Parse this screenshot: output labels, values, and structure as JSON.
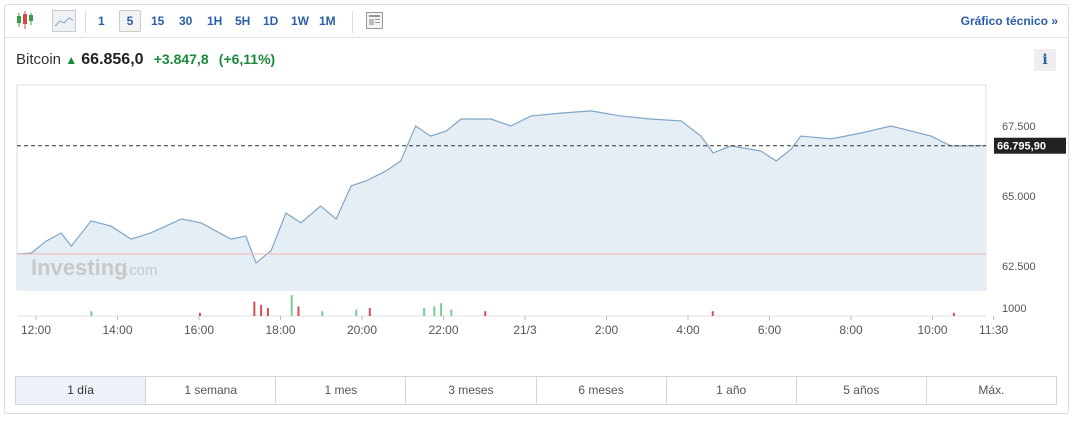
{
  "toolbar": {
    "intervals": [
      "1",
      "5",
      "15",
      "30",
      "1H",
      "5H",
      "1D",
      "1W",
      "1M"
    ],
    "selected_interval": "5",
    "technical_link": "Gráfico técnico »",
    "icons": [
      "candlestick-icon",
      "area-chart-icon",
      "news-layout-icon"
    ]
  },
  "quote": {
    "name": "Bitcoin",
    "price": "66.856,0",
    "change": "+3.847,8",
    "change_pct": "(+6,11%)",
    "direction": "up",
    "up_color": "#1a8a3a"
  },
  "info_label": "i",
  "watermark": {
    "brand": "Investing",
    "suffix": ".com"
  },
  "ranges": {
    "items": [
      "1 día",
      "1 semana",
      "1 mes",
      "3 meses",
      "6 meses",
      "1 año",
      "5 años",
      "Máx."
    ],
    "selected": "1 día"
  },
  "chart_data": {
    "type": "area",
    "current_price_label": "66.795,90",
    "current_price": 66795.9,
    "previous_close": 62930,
    "y_ticks": [
      {
        "v": 67500,
        "label": "67.500"
      },
      {
        "v": 65000,
        "label": "65.000"
      },
      {
        "v": 62500,
        "label": "62.500"
      }
    ],
    "volume_tick": "1000",
    "x_ticks": [
      {
        "t": "12:00",
        "label": "12:00"
      },
      {
        "t": "14:00",
        "label": "14:00"
      },
      {
        "t": "16:00",
        "label": "16:00"
      },
      {
        "t": "18:00",
        "label": "18:00"
      },
      {
        "t": "20:00",
        "label": "20:00"
      },
      {
        "t": "22:00",
        "label": "22:00"
      },
      {
        "t": "+00:00",
        "label": "21/3"
      },
      {
        "t": "+02:00",
        "label": "2:00"
      },
      {
        "t": "+04:00",
        "label": "4:00"
      },
      {
        "t": "+06:00",
        "label": "6:00"
      },
      {
        "t": "+08:00",
        "label": "8:00"
      },
      {
        "t": "+10:00",
        "label": "10:00"
      },
      {
        "t": "+11:30",
        "label": "11:30"
      }
    ],
    "series": [
      [
        "11:32",
        62930
      ],
      [
        "11:53",
        62960
      ],
      [
        "12:15",
        63390
      ],
      [
        "12:37",
        63680
      ],
      [
        "12:52",
        63210
      ],
      [
        "13:21",
        64110
      ],
      [
        "13:50",
        63930
      ],
      [
        "14:20",
        63460
      ],
      [
        "14:49",
        63680
      ],
      [
        "15:34",
        64180
      ],
      [
        "16:03",
        64040
      ],
      [
        "16:47",
        63460
      ],
      [
        "17:09",
        63570
      ],
      [
        "17:24",
        62610
      ],
      [
        "17:46",
        63040
      ],
      [
        "18:08",
        64390
      ],
      [
        "18:30",
        64040
      ],
      [
        "18:59",
        64640
      ],
      [
        "19:22",
        64180
      ],
      [
        "19:44",
        65360
      ],
      [
        "20:06",
        65540
      ],
      [
        "20:35",
        65890
      ],
      [
        "20:57",
        66250
      ],
      [
        "21:19",
        67500
      ],
      [
        "21:41",
        67140
      ],
      [
        "22:04",
        67320
      ],
      [
        "22:26",
        67750
      ],
      [
        "23:10",
        67750
      ],
      [
        "23:39",
        67500
      ],
      [
        "+00:09",
        67860
      ],
      [
        "+00:53",
        67960
      ],
      [
        "+01:37",
        68040
      ],
      [
        "+02:21",
        67860
      ],
      [
        "+03:05",
        67750
      ],
      [
        "+03:50",
        67680
      ],
      [
        "+04:19",
        67140
      ],
      [
        "+04:37",
        66540
      ],
      [
        "+05:03",
        66790
      ],
      [
        "+05:47",
        66610
      ],
      [
        "+06:10",
        66250
      ],
      [
        "+06:32",
        66680
      ],
      [
        "+06:46",
        67140
      ],
      [
        "+07:31",
        67040
      ],
      [
        "+08:15",
        67250
      ],
      [
        "+08:59",
        67500
      ],
      [
        "+09:58",
        67140
      ],
      [
        "+10:27",
        66790
      ],
      [
        "+11:19",
        66796
      ]
    ],
    "volume": [
      [
        "13:20",
        300,
        "up"
      ],
      [
        "16:00",
        200,
        "down"
      ],
      [
        "17:20",
        900,
        "down"
      ],
      [
        "17:30",
        700,
        "down"
      ],
      [
        "17:40",
        500,
        "down"
      ],
      [
        "18:15",
        1300,
        "up"
      ],
      [
        "18:25",
        600,
        "down"
      ],
      [
        "19:00",
        300,
        "up"
      ],
      [
        "19:50",
        400,
        "up"
      ],
      [
        "20:10",
        500,
        "down"
      ],
      [
        "21:30",
        500,
        "up"
      ],
      [
        "21:45",
        600,
        "up"
      ],
      [
        "21:55",
        800,
        "up"
      ],
      [
        "22:10",
        400,
        "up"
      ],
      [
        "23:00",
        300,
        "down"
      ],
      [
        "+04:35",
        300,
        "down"
      ],
      [
        "+10:30",
        200,
        "down"
      ]
    ],
    "line_color": "#7fa6c6",
    "fill_color": "#e5edf5",
    "up_color": "#7dc98f",
    "down_color": "#d44f4f",
    "prev_close_color": "#f0b8b8"
  }
}
